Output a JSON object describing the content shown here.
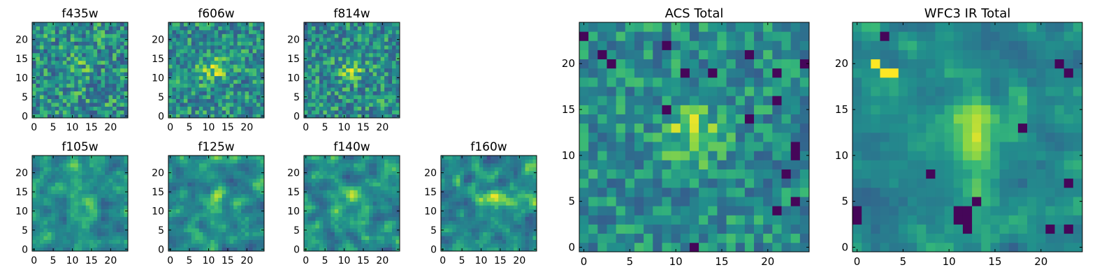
{
  "figure": {
    "colormap": "viridis",
    "colors": {
      "low": "#440154",
      "mid": "#21918c",
      "high": "#fde725",
      "frame": "#000000"
    }
  },
  "chart_data": [
    {
      "type": "heatmap",
      "title": "f435w",
      "grid_size": 25,
      "xlim": [
        -0.5,
        24.5
      ],
      "ylim": [
        -0.5,
        24.5
      ],
      "xticks": [
        0,
        5,
        10,
        15,
        20
      ],
      "yticks": [
        0,
        5,
        10,
        15,
        20
      ],
      "noise_level": 0.26,
      "peak": {
        "x": 12,
        "y": 12,
        "amplitude": 0.1,
        "width": 2.5
      }
    },
    {
      "type": "heatmap",
      "title": "f606w",
      "grid_size": 25,
      "xlim": [
        -0.5,
        24.5
      ],
      "ylim": [
        -0.5,
        24.5
      ],
      "xticks": [
        0,
        5,
        10,
        15,
        20
      ],
      "yticks": [
        0,
        5,
        10,
        15,
        20
      ],
      "noise_level": 0.24,
      "peak": {
        "x": 11,
        "y": 12,
        "amplitude": 0.3,
        "width": 2.2
      }
    },
    {
      "type": "heatmap",
      "title": "f814w",
      "grid_size": 25,
      "xlim": [
        -0.5,
        24.5
      ],
      "ylim": [
        -0.5,
        24.5
      ],
      "xticks": [
        0,
        5,
        10,
        15,
        20
      ],
      "yticks": [
        0,
        5,
        10,
        15,
        20
      ],
      "noise_level": 0.24,
      "peak": {
        "x": 12,
        "y": 12,
        "amplitude": 0.3,
        "width": 2.0
      }
    },
    {
      "type": "heatmap",
      "title": "f105w",
      "grid_size": 25,
      "xlim": [
        -0.5,
        24.5
      ],
      "ylim": [
        -0.5,
        24.5
      ],
      "xticks": [
        0,
        5,
        10,
        15,
        20
      ],
      "yticks": [
        0,
        5,
        10,
        15,
        20
      ],
      "noise_level": 0.2,
      "smooth": true,
      "peak": {
        "x": 12,
        "y": 12,
        "amplitude": 0.2,
        "width": 2.6
      }
    },
    {
      "type": "heatmap",
      "title": "f125w",
      "grid_size": 25,
      "xlim": [
        -0.5,
        24.5
      ],
      "ylim": [
        -0.5,
        24.5
      ],
      "xticks": [
        0,
        5,
        10,
        15,
        20
      ],
      "yticks": [
        0,
        5,
        10,
        15,
        20
      ],
      "noise_level": 0.2,
      "smooth": true,
      "peak": {
        "x": 12,
        "y": 12,
        "amplitude": 0.22,
        "width": 2.6
      }
    },
    {
      "type": "heatmap",
      "title": "f140w",
      "grid_size": 25,
      "xlim": [
        -0.5,
        24.5
      ],
      "ylim": [
        -0.5,
        24.5
      ],
      "xticks": [
        0,
        5,
        10,
        15,
        20
      ],
      "yticks": [
        0,
        5,
        10,
        15,
        20
      ],
      "noise_level": 0.2,
      "smooth": true,
      "peak": {
        "x": 12,
        "y": 12,
        "amplitude": 0.25,
        "width": 2.8
      }
    },
    {
      "type": "heatmap",
      "title": "f160w",
      "grid_size": 25,
      "xlim": [
        -0.5,
        24.5
      ],
      "ylim": [
        -0.5,
        24.5
      ],
      "xticks": [
        0,
        5,
        10,
        15,
        20
      ],
      "yticks": [
        0,
        5,
        10,
        15,
        20
      ],
      "noise_level": 0.2,
      "smooth": true,
      "peak": {
        "x": 13,
        "y": 12,
        "amplitude": 0.25,
        "width": 2.8
      }
    },
    {
      "type": "heatmap",
      "title": "ACS Total",
      "grid_size": 25,
      "xlim": [
        -0.5,
        24.5
      ],
      "ylim": [
        -0.5,
        24.5
      ],
      "xticks": [
        0,
        5,
        10,
        15,
        20
      ],
      "yticks": [
        0,
        5,
        10,
        15,
        20
      ],
      "noise_level": 0.2,
      "peak": {
        "x": 12,
        "y": 12,
        "amplitude": 0.32,
        "width": 2.2
      },
      "dark_pixels": [
        [
          2,
          21
        ],
        [
          9,
          22
        ],
        [
          18,
          21
        ],
        [
          24,
          20
        ],
        [
          14,
          19
        ],
        [
          11,
          19
        ],
        [
          21,
          19
        ],
        [
          3,
          20
        ],
        [
          9,
          15
        ],
        [
          18,
          14
        ],
        [
          21,
          16
        ],
        [
          23,
          10
        ],
        [
          23,
          11
        ],
        [
          22,
          8
        ],
        [
          12,
          0
        ],
        [
          21,
          4
        ],
        [
          23,
          5
        ],
        [
          0,
          23
        ]
      ]
    },
    {
      "type": "heatmap",
      "title": "WFC3 IR Total",
      "grid_size": 25,
      "xlim": [
        -0.5,
        24.5
      ],
      "ylim": [
        -0.5,
        24.5
      ],
      "xticks": [
        0,
        5,
        10,
        15,
        20
      ],
      "yticks": [
        0,
        5,
        10,
        15,
        20
      ],
      "noise_level": 0.16,
      "smooth": true,
      "peak": {
        "x": 12,
        "y": 12,
        "amplitude": 0.3,
        "width": 2.8
      },
      "bright_pixels": [
        [
          3,
          19
        ],
        [
          4,
          19
        ],
        [
          2,
          20
        ]
      ],
      "dark_pixels": [
        [
          3,
          23
        ],
        [
          22,
          20
        ],
        [
          23,
          19
        ],
        [
          18,
          13
        ],
        [
          0,
          4
        ],
        [
          0,
          3
        ],
        [
          11,
          4
        ],
        [
          12,
          4
        ],
        [
          11,
          3
        ],
        [
          12,
          3
        ],
        [
          13,
          5
        ],
        [
          12,
          2
        ],
        [
          21,
          2
        ],
        [
          23,
          2
        ],
        [
          8,
          8
        ],
        [
          23,
          7
        ]
      ]
    }
  ]
}
